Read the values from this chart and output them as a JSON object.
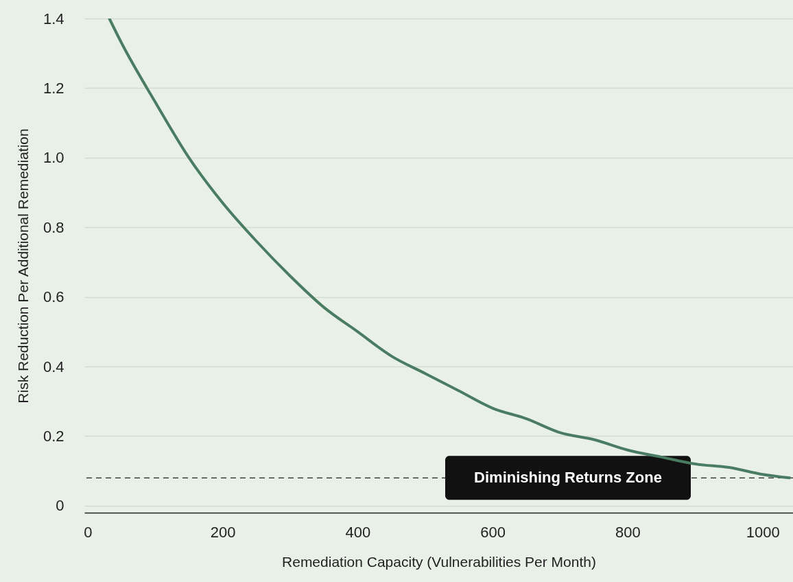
{
  "chart_data": {
    "type": "line",
    "xlabel": "Remediation Capacity (Vulnerabilities Per Month)",
    "ylabel": "Risk Reduction Per Additional Remediation",
    "x": [
      32,
      50,
      100,
      150,
      200,
      250,
      300,
      350,
      400,
      450,
      500,
      550,
      600,
      650,
      700,
      750,
      800,
      850,
      900,
      950,
      1000,
      1040
    ],
    "series": [
      {
        "color": "#4a7c62",
        "values": [
          1.4,
          1.33,
          1.16,
          1.0,
          0.87,
          0.76,
          0.66,
          0.57,
          0.5,
          0.43,
          0.38,
          0.33,
          0.28,
          0.25,
          0.21,
          0.19,
          0.16,
          0.14,
          0.12,
          0.11,
          0.09,
          0.08
        ]
      }
    ],
    "xlim": [
      -5,
      1045
    ],
    "xticks": [
      0,
      200,
      400,
      600,
      800,
      1000
    ],
    "ylim": [
      -0.02,
      1.4
    ],
    "yticks": [
      {
        "value": 0,
        "label": "0"
      },
      0.2,
      0.4,
      0.6,
      0.8,
      {
        "value": 1,
        "label": "1.0"
      },
      1.2,
      1.4
    ],
    "ref_lines": [
      {
        "axis": "y",
        "value": 0.08,
        "label": "Diminishing Returns Zone",
        "color": "#222222",
        "line_style": "dashed"
      }
    ],
    "grid": "y",
    "marker": "none",
    "line_style": "solid"
  }
}
